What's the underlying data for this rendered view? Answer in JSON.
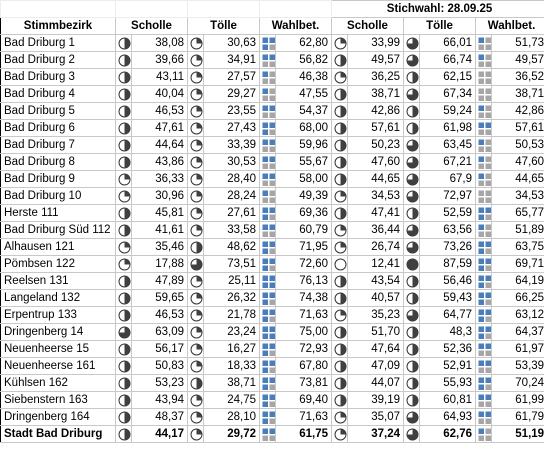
{
  "header_top": {
    "label": "Stichwahl: 28.09.25"
  },
  "columns": {
    "district": "Stimmbezirk",
    "scholle": "Scholle",
    "toelle": "Tölle",
    "turnout": "Wahlbet.",
    "scholle2": "Scholle",
    "toelle2": "Tölle",
    "turnout2": "Wahlbet."
  },
  "rows": [
    {
      "name": "Bad Driburg 1",
      "s1": "38,08",
      "t1": "30,63",
      "w1": "62,80",
      "s2": "33,99",
      "t2": "66,01",
      "w2": "51,73"
    },
    {
      "name": "Bad Driburg 2",
      "s1": "39,66",
      "t1": "34,91",
      "w1": "56,82",
      "s2": "49,57",
      "t2": "66,74",
      "w2": "49,57"
    },
    {
      "name": "Bad Driburg 3",
      "s1": "43,11",
      "t1": "27,57",
      "w1": "46,38",
      "s2": "36,25",
      "t2": "62,15",
      "w2": "36,52"
    },
    {
      "name": "Bad Driburg 4",
      "s1": "40,04",
      "t1": "29,27",
      "w1": "47,55",
      "s2": "38,71",
      "t2": "67,34",
      "w2": "38,71"
    },
    {
      "name": "Bad Driburg 5",
      "s1": "46,53",
      "t1": "23,55",
      "w1": "54,37",
      "s2": "42,86",
      "t2": "59,24",
      "w2": "42,86"
    },
    {
      "name": "Bad Driburg 6",
      "s1": "47,61",
      "t1": "27,43",
      "w1": "68,00",
      "s2": "57,61",
      "t2": "61,98",
      "w2": "57,61"
    },
    {
      "name": "Bad Driburg 7",
      "s1": "44,64",
      "t1": "33,39",
      "w1": "59,96",
      "s2": "50,23",
      "t2": "63,45",
      "w2": "50,53"
    },
    {
      "name": "Bad Driburg 8",
      "s1": "43,86",
      "t1": "30,53",
      "w1": "55,67",
      "s2": "47,60",
      "t2": "67,21",
      "w2": "47,60"
    },
    {
      "name": "Bad Driburg 9",
      "s1": "36,33",
      "t1": "28,40",
      "w1": "58,00",
      "s2": "44,65",
      "t2": "67,9",
      "w2": "44,65"
    },
    {
      "name": "Bad Driburg 10",
      "s1": "30,96",
      "t1": "28,24",
      "w1": "49,39",
      "s2": "34,53",
      "t2": "72,97",
      "w2": "34,53"
    },
    {
      "name": "Herste 111",
      "s1": "45,81",
      "t1": "27,61",
      "w1": "69,36",
      "s2": "47,41",
      "t2": "52,59",
      "w2": "65,77"
    },
    {
      "name": "Bad Driburg Süd 112",
      "s1": "41,61",
      "t1": "33,58",
      "w1": "60,79",
      "s2": "36,44",
      "t2": "63,56",
      "w2": "51,89"
    },
    {
      "name": "Alhausen 121",
      "s1": "35,46",
      "t1": "48,62",
      "w1": "71,95",
      "s2": "26,74",
      "t2": "73,26",
      "w2": "63,75"
    },
    {
      "name": "Pömbsen 122",
      "s1": "17,88",
      "t1": "73,51",
      "w1": "72,60",
      "s2": "12,41",
      "t2": "87,59",
      "w2": "69,71"
    },
    {
      "name": "Reelsen 131",
      "s1": "47,89",
      "t1": "25,11",
      "w1": "76,13",
      "s2": "43,54",
      "t2": "56,46",
      "w2": "64,19"
    },
    {
      "name": "Langeland 132",
      "s1": "59,65",
      "t1": "26,32",
      "w1": "74,38",
      "s2": "40,57",
      "t2": "59,43",
      "w2": "66,25"
    },
    {
      "name": "Erpentrup 133",
      "s1": "46,53",
      "t1": "21,78",
      "w1": "71,63",
      "s2": "35,23",
      "t2": "64,77",
      "w2": "63,12"
    },
    {
      "name": "Dringenberg 14",
      "s1": "63,09",
      "t1": "23,24",
      "w1": "75,00",
      "s2": "51,70",
      "t2": "48,3",
      "w2": "64,37"
    },
    {
      "name": "Neuenheerse 15",
      "s1": "56,17",
      "t1": "16,27",
      "w1": "72,93",
      "s2": "47,64",
      "t2": "52,36",
      "w2": "61,97"
    },
    {
      "name": "Neuenheerse 161",
      "s1": "50,83",
      "t1": "18,33",
      "w1": "67,80",
      "s2": "47,09",
      "t2": "52,91",
      "w2": "53,39"
    },
    {
      "name": "Kühlsen 162",
      "s1": "53,23",
      "t1": "38,71",
      "w1": "73,81",
      "s2": "44,07",
      "t2": "55,93",
      "w2": "70,24"
    },
    {
      "name": "Siebenstern 163",
      "s1": "43,94",
      "t1": "24,75",
      "w1": "69,40",
      "s2": "39,19",
      "t2": "60,81",
      "w2": "61,99"
    },
    {
      "name": "Dringenberg 164",
      "s1": "48,37",
      "t1": "28,10",
      "w1": "71,63",
      "s2": "35,07",
      "t2": "64,93",
      "w2": "61,79"
    }
  ],
  "total": {
    "name": "Stadt Bad Driburg",
    "s1": "44,17",
    "t1": "29,72",
    "w1": "61,75",
    "s2": "37,24",
    "t2": "62,76",
    "w2": "51,19"
  },
  "colors": {
    "grid": "#c8c8c8",
    "turnout_blue": "#4a7ebb",
    "turnout_grey": "#a6a6a6",
    "pie_fill": "#404040"
  }
}
